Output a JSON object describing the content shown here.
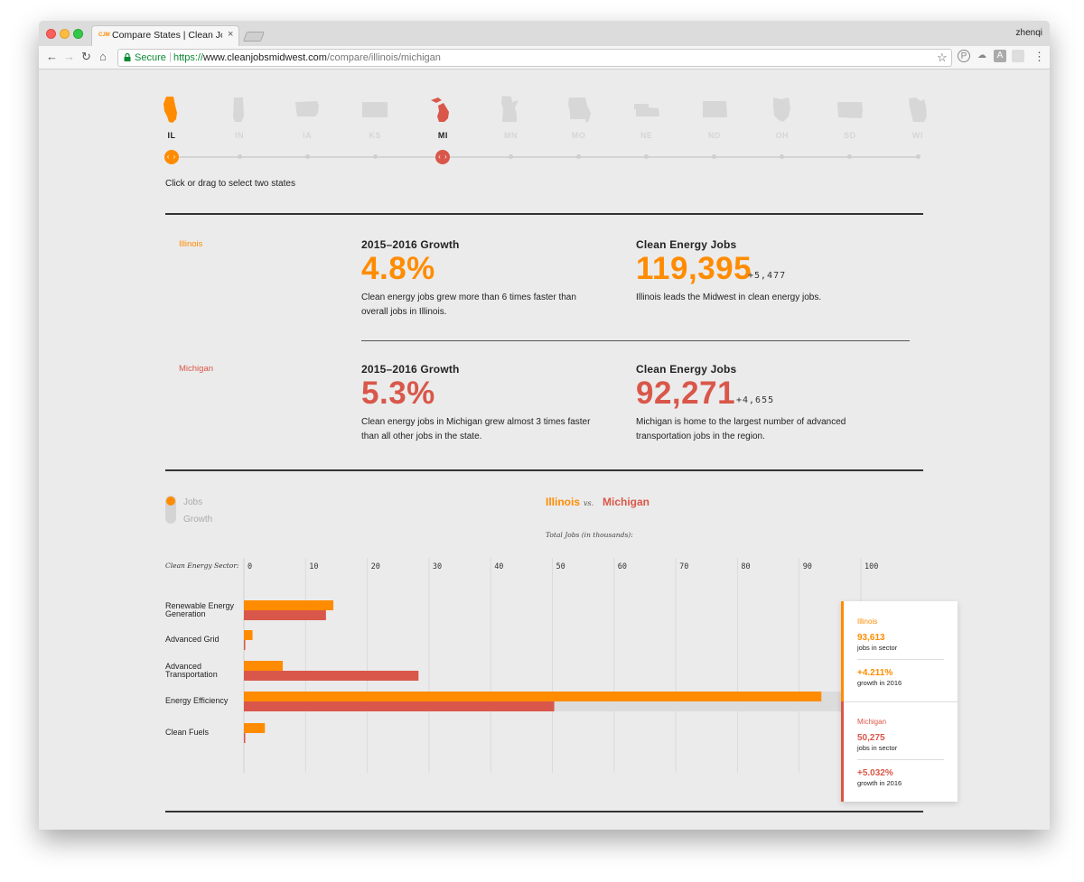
{
  "browser": {
    "tab_title": "Compare States | Clean Jobs M",
    "tab_favicon": "CJM",
    "tab_close": "×",
    "profile": "zhenqi",
    "secure_label": "Secure",
    "url_proto": "https://",
    "url_host": "www.cleanjobsmidwest.com",
    "url_path": "/compare/illinois/michigan",
    "nav": {
      "back": "←",
      "forward": "→",
      "reload": "↻",
      "home": "⌂",
      "star": "☆",
      "menu": "⋮"
    }
  },
  "colors": {
    "illinois": "#ff8c00",
    "michigan": "#d9574a",
    "inactive_state": "#d7d7d7",
    "text": "#222222"
  },
  "states": [
    {
      "abbr": "IL",
      "selected": "illinois"
    },
    {
      "abbr": "IN",
      "selected": ""
    },
    {
      "abbr": "IA",
      "selected": ""
    },
    {
      "abbr": "KS",
      "selected": ""
    },
    {
      "abbr": "MI",
      "selected": "michigan"
    },
    {
      "abbr": "MN",
      "selected": ""
    },
    {
      "abbr": "MO",
      "selected": ""
    },
    {
      "abbr": "NE",
      "selected": ""
    },
    {
      "abbr": "ND",
      "selected": ""
    },
    {
      "abbr": "OH",
      "selected": ""
    },
    {
      "abbr": "SD",
      "selected": ""
    },
    {
      "abbr": "WI",
      "selected": ""
    }
  ],
  "slider": {
    "handle_glyph": "‹ ›",
    "hint": "Click or drag to select two states"
  },
  "summary": {
    "illinois": {
      "name": "Illinois",
      "growth_title": "2015–2016 Growth",
      "growth_value": "4.8%",
      "growth_desc": "Clean energy jobs grew more than 6 times faster than overall jobs in Illinois.",
      "jobs_title": "Clean Energy Jobs",
      "jobs_value": "119,395",
      "jobs_delta": "+5,477",
      "jobs_desc": "Illinois leads the Midwest in clean energy jobs."
    },
    "michigan": {
      "name": "Michigan",
      "growth_title": "2015–2016 Growth",
      "growth_value": "5.3%",
      "growth_desc": "Clean energy jobs in Michigan grew almost 3 times faster than all other jobs in the state.",
      "jobs_title": "Clean Energy Jobs",
      "jobs_value": "92,271",
      "jobs_delta": "+4,655",
      "jobs_desc": "Michigan is home to the largest number of advanced transportation jobs in the region."
    }
  },
  "toggle": {
    "option_jobs": "Jobs",
    "option_growth": "Growth",
    "selected": "Jobs"
  },
  "comparison": {
    "state_a": "Illinois",
    "vs": "vs.",
    "state_b": "Michigan"
  },
  "chart_data": {
    "type": "bar",
    "orientation": "horizontal",
    "title": "Total Jobs (in thousands):",
    "category_axis_label": "Clean Energy Sector:",
    "categories": [
      "Renewable Energy Generation",
      "Advanced Grid",
      "Advanced Transportation",
      "Energy Efficiency",
      "Clean Fuels"
    ],
    "series": [
      {
        "name": "Illinois",
        "color": "#ff8c00",
        "values": [
          14.5,
          1.4,
          6.3,
          93.6,
          3.4
        ]
      },
      {
        "name": "Michigan",
        "color": "#d9574a",
        "values": [
          13.3,
          0.2,
          28.3,
          50.3,
          0.2
        ]
      }
    ],
    "xlim": [
      0,
      100
    ],
    "xticks": [
      0,
      10,
      20,
      30,
      40,
      50,
      60,
      70,
      80,
      90,
      100
    ],
    "grid": true,
    "highlighted_category": "Energy Efficiency"
  },
  "tooltip": {
    "illinois": {
      "name": "Illinois",
      "jobs": "93,613",
      "jobs_label": "jobs in sector",
      "growth": "+4.211%",
      "growth_label": "growth in 2016"
    },
    "michigan": {
      "name": "Michigan",
      "jobs": "50,275",
      "jobs_label": "jobs in sector",
      "growth": "+5.032%",
      "growth_label": "growth in 2016"
    }
  }
}
